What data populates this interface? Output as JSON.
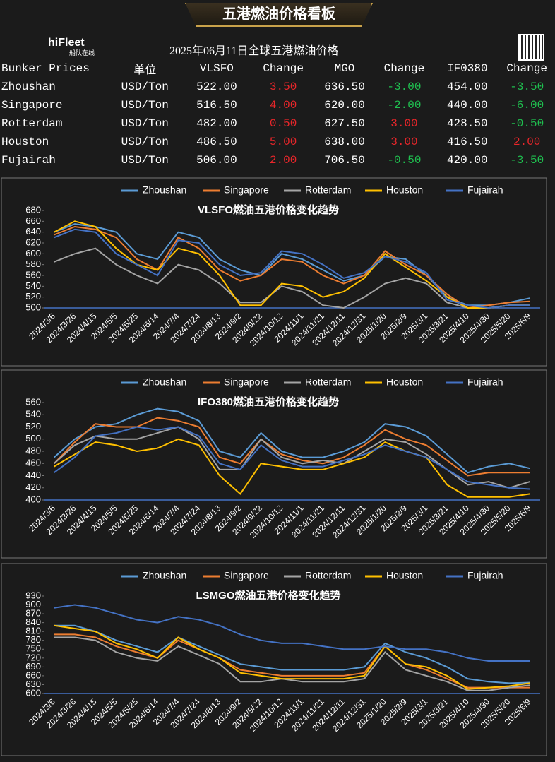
{
  "header": {
    "title": "五港燃油价格看板",
    "brand": "hiFleet",
    "brand_sub": "船队在线",
    "subtitle": "2025年06月11日全球五港燃油价格"
  },
  "table": {
    "columns": [
      "Bunker Prices",
      "单位",
      "VLSFO",
      "Change",
      "MGO",
      "Change",
      "IF0380",
      "Change"
    ],
    "rows": [
      [
        "Zhoushan",
        "USD/Ton",
        "522.00",
        "3.50",
        "636.50",
        "-3.00",
        "454.00",
        "-3.50"
      ],
      [
        "Singapore",
        "USD/Ton",
        "516.50",
        "4.00",
        "620.00",
        "-2.00",
        "440.00",
        "-6.00"
      ],
      [
        "Rotterdam",
        "USD/Ton",
        "482.00",
        "0.50",
        "627.50",
        "3.00",
        "428.50",
        "-0.50"
      ],
      [
        "Houston",
        "USD/Ton",
        "486.50",
        "5.00",
        "638.00",
        "3.00",
        "416.50",
        "2.00"
      ],
      [
        "Fujairah",
        "USD/Ton",
        "506.00",
        "2.00",
        "706.50",
        "-0.50",
        "420.00",
        "-3.50"
      ]
    ]
  },
  "chart_data": [
    {
      "type": "line",
      "title": "VLSFO燃油五港价格变化趋势",
      "legend": "top",
      "categories": [
        "2024/3/6",
        "2024/3/26",
        "2024/4/15",
        "2024/5/5",
        "2024/5/25",
        "2024/6/14",
        "2024/7/4",
        "2024/7/24",
        "2024/8/13",
        "2024/9/2",
        "2024/9/22",
        "2024/10/12",
        "2024/11/1",
        "2024/11/21",
        "2024/12/11",
        "2024/12/31",
        "2025/1/20",
        "2025/2/9",
        "2025/3/1",
        "2025/3/21",
        "2025/4/10",
        "2025/4/30",
        "2025/5/20",
        "2025/6/9"
      ],
      "ylim": [
        500,
        680
      ],
      "yticks": [
        500,
        520,
        540,
        560,
        580,
        600,
        620,
        640,
        660,
        680
      ],
      "series": [
        {
          "name": "Zhoushan",
          "color": "#5b9bd5",
          "values": [
            640,
            655,
            650,
            640,
            600,
            590,
            640,
            630,
            590,
            570,
            560,
            600,
            590,
            570,
            550,
            560,
            595,
            590,
            560,
            520,
            505,
            505,
            510,
            518
          ]
        },
        {
          "name": "Singapore",
          "color": "#ed7d31",
          "values": [
            635,
            650,
            645,
            630,
            590,
            570,
            630,
            610,
            570,
            550,
            560,
            590,
            585,
            560,
            545,
            560,
            605,
            580,
            560,
            525,
            500,
            505,
            510,
            512
          ]
        },
        {
          "name": "Rotterdam",
          "color": "#a5a5a5",
          "values": [
            585,
            600,
            610,
            580,
            560,
            545,
            580,
            570,
            545,
            510,
            510,
            540,
            530,
            505,
            500,
            520,
            545,
            555,
            545,
            510,
            500,
            500,
            505,
            505
          ]
        },
        {
          "name": "Houston",
          "color": "#ffc000",
          "values": [
            640,
            660,
            650,
            610,
            580,
            570,
            610,
            600,
            560,
            505,
            505,
            545,
            540,
            520,
            530,
            555,
            600,
            575,
            550,
            520,
            500,
            500,
            505,
            505
          ]
        },
        {
          "name": "Fujairah",
          "color": "#4472c4",
          "values": [
            630,
            645,
            640,
            600,
            580,
            560,
            625,
            620,
            580,
            560,
            565,
            605,
            600,
            580,
            555,
            565,
            595,
            585,
            565,
            515,
            505,
            500,
            505,
            505
          ]
        }
      ]
    },
    {
      "type": "line",
      "title": "IFO380燃油五港价格变化趋势",
      "legend": "top",
      "categories": [
        "2024/3/6",
        "2024/3/26",
        "2024/4/15",
        "2024/5/5",
        "2024/5/25",
        "2024/6/14",
        "2024/7/4",
        "2024/7/24",
        "2024/8/13",
        "2024/9/2",
        "2024/9/22",
        "2024/10/12",
        "2024/11/1",
        "2024/11/21",
        "2024/12/11",
        "2024/12/31",
        "2025/1/20",
        "2025/2/9",
        "2025/3/1",
        "2025/3/21",
        "2025/4/10",
        "2025/4/30",
        "2025/5/20",
        "2025/6/9"
      ],
      "ylim": [
        400,
        560
      ],
      "yticks": [
        400,
        420,
        440,
        460,
        480,
        500,
        520,
        540,
        560
      ],
      "series": [
        {
          "name": "Zhoushan",
          "color": "#5b9bd5",
          "values": [
            470,
            500,
            520,
            525,
            540,
            550,
            545,
            530,
            480,
            470,
            510,
            480,
            470,
            470,
            480,
            495,
            525,
            520,
            505,
            475,
            445,
            455,
            460,
            452
          ]
        },
        {
          "name": "Singapore",
          "color": "#ed7d31",
          "values": [
            460,
            495,
            525,
            520,
            520,
            535,
            530,
            520,
            470,
            460,
            500,
            475,
            465,
            460,
            470,
            490,
            515,
            500,
            490,
            465,
            440,
            445,
            445,
            445
          ]
        },
        {
          "name": "Rotterdam",
          "color": "#a5a5a5",
          "values": [
            460,
            490,
            505,
            500,
            500,
            510,
            520,
            500,
            450,
            450,
            500,
            470,
            460,
            465,
            460,
            480,
            500,
            495,
            475,
            450,
            425,
            430,
            420,
            430
          ]
        },
        {
          "name": "Houston",
          "color": "#ffc000",
          "values": [
            455,
            475,
            495,
            490,
            480,
            485,
            500,
            490,
            440,
            410,
            460,
            455,
            450,
            450,
            460,
            470,
            495,
            480,
            470,
            425,
            405,
            405,
            405,
            410
          ]
        },
        {
          "name": "Fujairah",
          "color": "#4472c4",
          "values": [
            445,
            470,
            505,
            510,
            520,
            515,
            520,
            505,
            460,
            450,
            490,
            465,
            455,
            455,
            465,
            475,
            490,
            480,
            470,
            450,
            430,
            425,
            420,
            418
          ]
        }
      ]
    },
    {
      "type": "line",
      "title": "LSMGO燃油五港价格变化趋势",
      "legend": "top",
      "categories": [
        "2024/3/6",
        "2024/3/26",
        "2024/4/15",
        "2024/5/5",
        "2024/5/25",
        "2024/6/14",
        "2024/7/4",
        "2024/7/24",
        "2024/8/13",
        "2024/9/2",
        "2024/9/22",
        "2024/10/12",
        "2024/11/1",
        "2024/11/21",
        "2024/12/11",
        "2024/12/31",
        "2025/1/20",
        "2025/2/9",
        "2025/3/1",
        "2025/3/21",
        "2025/4/10",
        "2025/4/30",
        "2025/5/20",
        "2025/6/9"
      ],
      "ylim": [
        600,
        930
      ],
      "yticks": [
        600,
        630,
        660,
        690,
        720,
        750,
        780,
        810,
        840,
        870,
        900,
        930
      ],
      "series": [
        {
          "name": "Zhoushan",
          "color": "#5b9bd5",
          "values": [
            830,
            830,
            810,
            780,
            760,
            740,
            790,
            760,
            730,
            700,
            690,
            680,
            680,
            680,
            680,
            690,
            770,
            740,
            720,
            690,
            650,
            640,
            635,
            637
          ]
        },
        {
          "name": "Singapore",
          "color": "#ed7d31",
          "values": [
            800,
            800,
            790,
            760,
            740,
            720,
            780,
            750,
            720,
            680,
            670,
            660,
            660,
            660,
            660,
            670,
            760,
            700,
            680,
            650,
            620,
            620,
            620,
            620
          ]
        },
        {
          "name": "Rotterdam",
          "color": "#a5a5a5",
          "values": [
            790,
            790,
            780,
            740,
            720,
            710,
            760,
            730,
            700,
            640,
            640,
            650,
            640,
            640,
            640,
            650,
            740,
            680,
            660,
            640,
            610,
            610,
            620,
            628
          ]
        },
        {
          "name": "Houston",
          "color": "#ffc000",
          "values": [
            830,
            820,
            810,
            770,
            750,
            720,
            790,
            750,
            720,
            670,
            660,
            650,
            650,
            650,
            650,
            660,
            760,
            700,
            690,
            660,
            615,
            620,
            625,
            635
          ]
        },
        {
          "name": "Fujairah",
          "color": "#4472c4",
          "values": [
            890,
            900,
            890,
            870,
            850,
            840,
            860,
            850,
            830,
            800,
            780,
            770,
            770,
            760,
            750,
            750,
            760,
            750,
            750,
            740,
            720,
            710,
            710,
            710
          ]
        }
      ]
    }
  ]
}
